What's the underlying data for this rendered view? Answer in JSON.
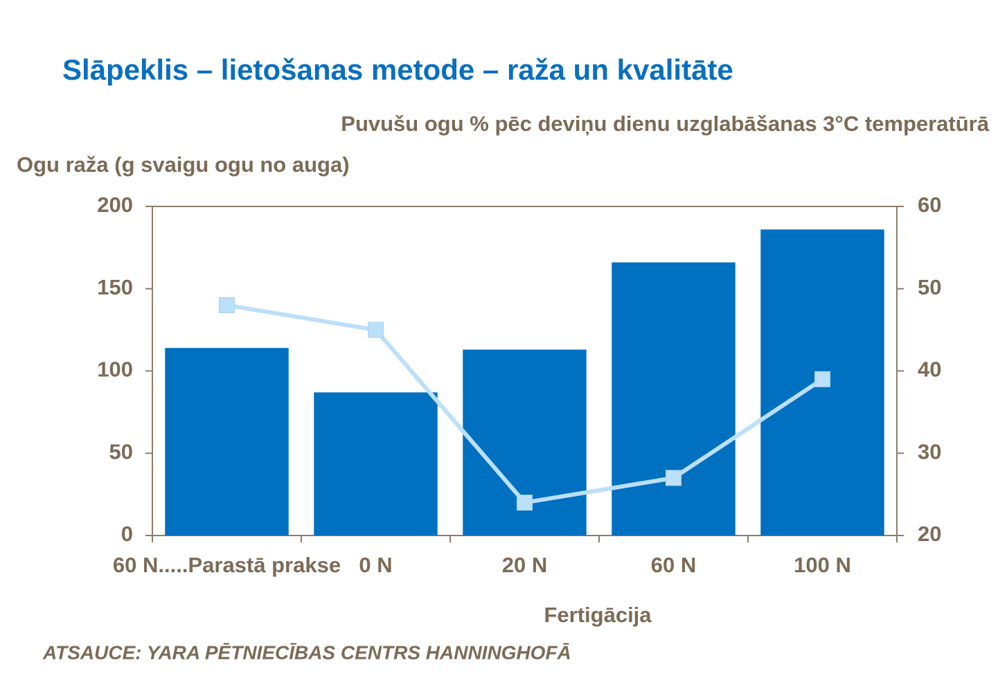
{
  "chart_data": {
    "type": "bar",
    "title": "Slāpeklis – lietošanas metode – raža un kvalitāte",
    "y_label": "Ogu raža (g svaigu ogu no auga)",
    "y2_label": "Puvušu ogu % pēc deviņu dienu uzglabāšanas 3°C temperatūrā",
    "x_label": "Fertigācija",
    "source": "ATSAUCE:  YARA PĒTNIECĪBAS CENTRS HANNINGHOFĀ",
    "categories": [
      "60 N.....Parastā prakse",
      "0 N",
      "20 N",
      "60 N",
      "100 N"
    ],
    "series": [
      {
        "type": "bar",
        "color": "#0070c0",
        "values": [
          114,
          87,
          113,
          166,
          186
        ]
      },
      {
        "type": "line",
        "axis": "y2",
        "color": "#bcdffa",
        "values": [
          48,
          45,
          24,
          27,
          39
        ]
      }
    ],
    "ylim": [
      0,
      200
    ],
    "yticks": [
      0,
      50,
      100,
      150,
      200
    ],
    "y2lim": [
      20,
      60
    ],
    "y2ticks": [
      20,
      30,
      40,
      50,
      60
    ],
    "grid": false
  }
}
